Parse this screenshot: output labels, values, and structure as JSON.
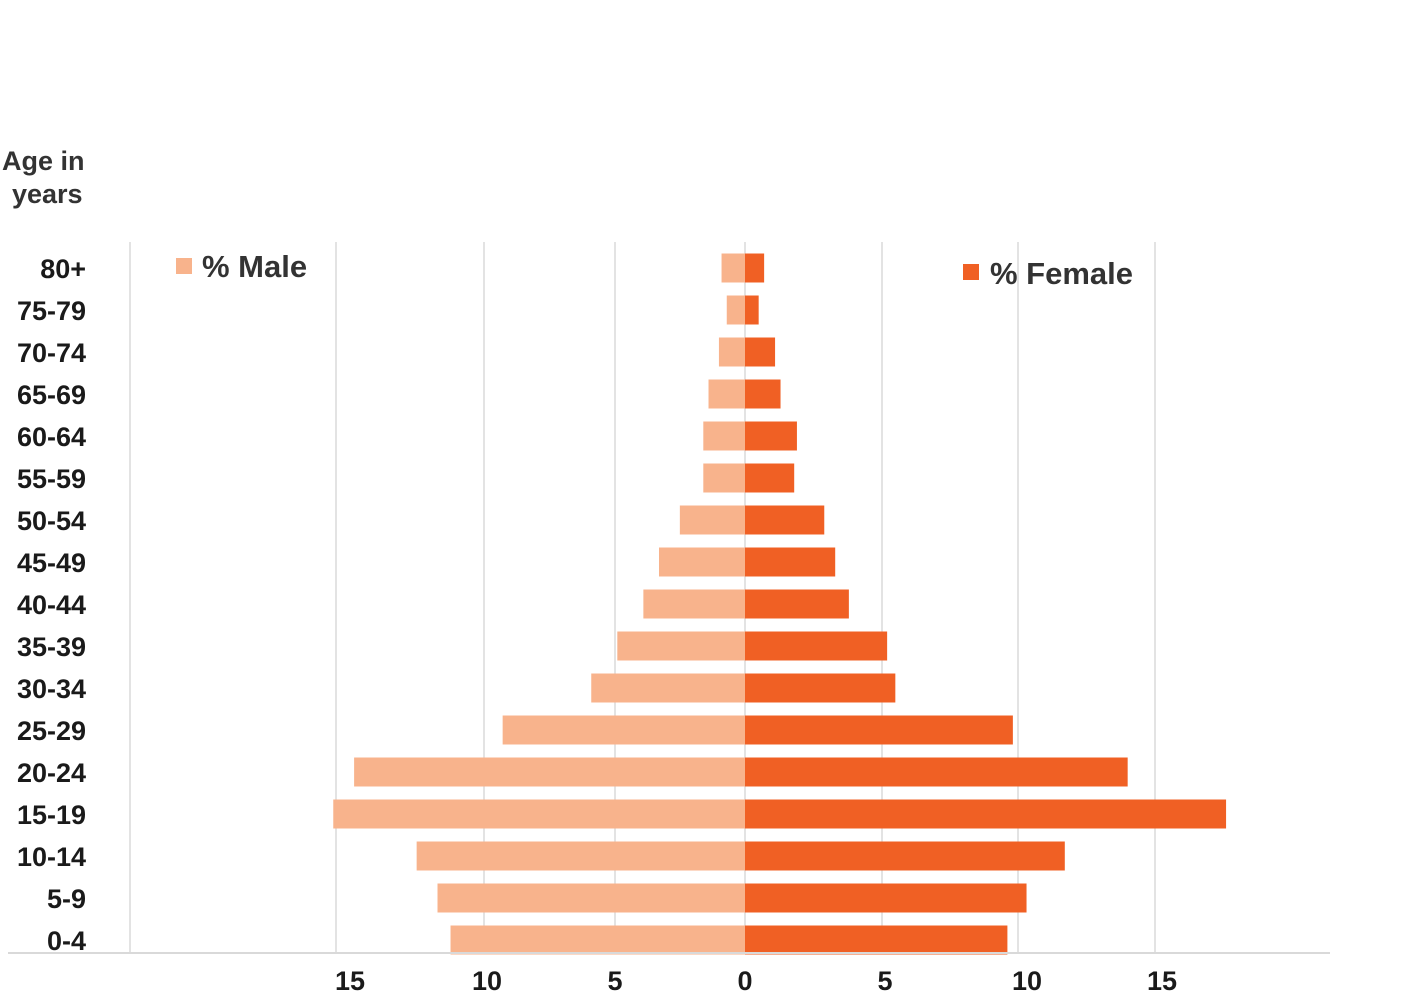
{
  "chart_data": {
    "type": "bar",
    "orientation": "horizontal",
    "ylabel": "Age in years",
    "categories": [
      "80+",
      "75-79",
      "70-74",
      "65-69",
      "60-64",
      "55-59",
      "50-54",
      "45-49",
      "40-44",
      "35-39",
      "30-34",
      "25-29",
      "20-24",
      "15-19",
      "10-14",
      "5-9",
      "0-4"
    ],
    "series": [
      {
        "name": "% Male",
        "color": "#F8B38C",
        "values": [
          0.9,
          0.7,
          1.0,
          1.4,
          1.6,
          1.6,
          2.5,
          3.3,
          3.9,
          4.9,
          5.9,
          9.3,
          15.0,
          15.8,
          12.6,
          11.8,
          11.3
        ]
      },
      {
        "name": "% Female",
        "color": "#F06024",
        "values": [
          0.7,
          0.5,
          1.1,
          1.3,
          1.9,
          1.8,
          2.9,
          3.3,
          3.8,
          5.2,
          5.5,
          9.8,
          14.0,
          17.6,
          11.7,
          10.3,
          9.6
        ]
      }
    ],
    "male_axis": {
      "ticks": [
        15,
        10,
        5,
        0
      ],
      "range": [
        0,
        23.6
      ]
    },
    "female_axis": {
      "ticks": [
        5,
        10,
        15
      ],
      "range": [
        0,
        21.2
      ]
    },
    "grid": true,
    "legend": {
      "male": "top-left",
      "female": "top-right"
    }
  }
}
